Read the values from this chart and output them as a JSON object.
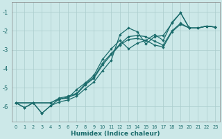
{
  "xlabel": "Humidex (Indice chaleur)",
  "background_color": "#cce8e8",
  "grid_color": "#aacccc",
  "line_color": "#1a6b6b",
  "xlim": [
    -0.5,
    23.5
  ],
  "ylim": [
    -6.8,
    -0.5
  ],
  "yticks": [
    -6,
    -5,
    -4,
    -3,
    -2,
    -1
  ],
  "xticks": [
    0,
    1,
    2,
    3,
    4,
    5,
    6,
    7,
    8,
    9,
    10,
    11,
    12,
    13,
    14,
    15,
    16,
    17,
    18,
    19,
    20,
    21,
    22,
    23
  ],
  "line1_x": [
    0,
    1,
    2,
    3,
    4,
    5,
    6,
    7,
    8,
    9,
    10,
    11,
    12,
    13,
    14,
    15,
    16,
    17,
    18,
    19,
    20,
    21,
    22,
    23
  ],
  "line1_y": [
    -5.8,
    -6.05,
    -5.8,
    -6.35,
    -5.95,
    -5.75,
    -5.65,
    -5.45,
    -5.05,
    -4.7,
    -4.1,
    -3.55,
    -2.2,
    -1.85,
    -2.05,
    -2.7,
    -2.3,
    -2.25,
    -1.6,
    -1.05,
    -1.85,
    -1.85,
    -1.75,
    -1.8
  ],
  "line2_x": [
    0,
    1,
    2,
    3,
    4,
    5,
    6,
    7,
    8,
    9,
    10,
    11,
    12,
    13,
    14,
    15,
    16,
    17,
    18,
    19,
    20,
    21,
    22,
    23
  ],
  "line2_y": [
    -5.8,
    -6.05,
    -5.8,
    -6.35,
    -5.95,
    -5.6,
    -5.55,
    -5.1,
    -4.75,
    -4.35,
    -3.5,
    -2.95,
    -2.5,
    -2.95,
    -2.65,
    -2.5,
    -2.2,
    -2.5,
    -1.55,
    -1.05,
    -1.85,
    -1.85,
    -1.75,
    -1.8
  ],
  "line3_x": [
    0,
    2,
    4,
    5,
    6,
    7,
    8,
    9,
    10,
    11,
    12,
    13,
    14,
    15,
    16,
    17,
    18,
    19,
    20,
    21,
    22,
    23
  ],
  "line3_y": [
    -5.8,
    -5.8,
    -5.8,
    -5.6,
    -5.5,
    -5.35,
    -4.85,
    -4.5,
    -3.8,
    -3.25,
    -2.75,
    -2.45,
    -2.4,
    -2.5,
    -2.75,
    -2.85,
    -2.05,
    -1.65,
    -1.85,
    -1.85,
    -1.75,
    -1.8
  ],
  "line4_x": [
    0,
    2,
    4,
    5,
    6,
    7,
    8,
    9,
    10,
    11,
    12,
    13,
    14,
    15,
    16,
    17,
    18,
    19,
    20,
    21,
    22,
    23
  ],
  "line4_y": [
    -5.8,
    -5.8,
    -5.8,
    -5.55,
    -5.45,
    -5.3,
    -4.8,
    -4.45,
    -3.7,
    -3.2,
    -2.7,
    -2.3,
    -2.25,
    -2.3,
    -2.55,
    -2.75,
    -2.0,
    -1.6,
    -1.85,
    -1.85,
    -1.75,
    -1.8
  ]
}
